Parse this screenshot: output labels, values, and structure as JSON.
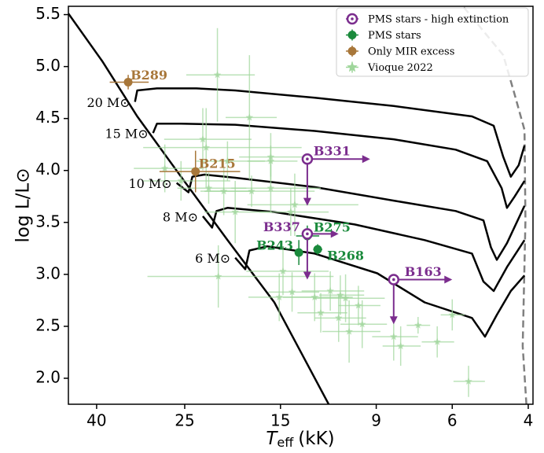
{
  "chart_data": {
    "type": "scatter",
    "x_label": {
      "symbol": "T",
      "subscript": "eff",
      "unit": "(kK)"
    },
    "y_label": "log L/L⊙",
    "xscale": "log",
    "xlim": [
      46.5,
      3.9
    ],
    "xticks": [
      40,
      25,
      15,
      9,
      6,
      4
    ],
    "ylim": [
      1.75,
      5.58
    ],
    "yticks": [
      {
        "value": 2,
        "label": "2.0"
      },
      2.5,
      {
        "value": 3,
        "label": "3.0"
      },
      3.5,
      {
        "value": 4,
        "label": "4.0"
      },
      4.5,
      {
        "value": 5,
        "label": "5.0"
      },
      5.5
    ],
    "legend_loc": "upper right",
    "series": [
      {
        "name": "PMS stars - high extinction",
        "color": "#7b2d8e",
        "marker": "open-circle",
        "labels": [
          "B331",
          "B337",
          "B163"
        ],
        "x": [
          13.0,
          13.0,
          8.2
        ],
        "y": [
          4.11,
          3.39,
          2.95
        ],
        "x_limit": [
          9.3,
          11.0,
          6.0
        ],
        "y_limit": [
          3.66,
          2.95,
          2.52
        ]
      },
      {
        "name": "PMS stars",
        "color": "#1a8a3c",
        "marker": "circle",
        "labels": [
          "B243",
          "B275",
          "B268"
        ],
        "x": [
          13.6,
          13.0,
          12.3
        ],
        "y": [
          3.21,
          3.37,
          3.24
        ],
        "xerr": [
          0.3,
          0.8,
          0.3
        ],
        "yerr": [
          0.12,
          0.1,
          0.05
        ]
      },
      {
        "name": "Only MIR excess",
        "color": "#a8773a",
        "marker": "circle",
        "labels": [
          "B289",
          "B215"
        ],
        "x": [
          33.8,
          23.6
        ],
        "y": [
          4.85,
          3.99
        ],
        "xerr": [
          3.5,
          5.0
        ],
        "yerr": [
          0.07,
          0.2
        ]
      },
      {
        "name": "Vioque 2022",
        "color": "#9fd69b",
        "marker": "star",
        "x": [
          21.0,
          17.7,
          22.7,
          22.3,
          19.9,
          15.8,
          15.8,
          25.5,
          22.0,
          20.3,
          17.5,
          15.8,
          13.9,
          19.1,
          14.2,
          20.9,
          15.1,
          14.1,
          12.5,
          11.5,
          10.9,
          10.6,
          11.0,
          10.4,
          9.7,
          9.9,
          12.1,
          8.2,
          7.9,
          7.2,
          6.5,
          6.0,
          5.5,
          14.8,
          27.8
        ],
        "y": [
          4.92,
          4.51,
          4.3,
          4.22,
          4.09,
          4.13,
          4.09,
          3.9,
          3.83,
          3.8,
          3.8,
          3.83,
          3.67,
          3.6,
          3.6,
          2.98,
          2.78,
          2.83,
          2.78,
          2.84,
          2.8,
          2.77,
          2.58,
          2.45,
          2.52,
          2.7,
          2.63,
          2.4,
          2.31,
          2.51,
          2.35,
          2.61,
          1.97,
          3.03,
          4.02
        ],
        "xerr": [
          3.8,
          2.4,
          5.2,
          8.9,
          3.6,
          2.9,
          2.1,
          5.9,
          4.0,
          2.7,
          5.0,
          3.7,
          4.0,
          3.4,
          2.6,
          9.6,
          2.7,
          1.9,
          2.3,
          1.9,
          1.3,
          2.0,
          1.5,
          1.6,
          1.2,
          1.1,
          1.6,
          1.0,
          0.8,
          0.45,
          0.56,
          0.38,
          0.46,
          3.2,
          5.0
        ],
        "yerr": [
          0.45,
          0.6,
          0.3,
          0.38,
          0.19,
          0.23,
          0.15,
          0.19,
          0.15,
          0.23,
          0.15,
          0.23,
          0.3,
          0.3,
          0.23,
          0.3,
          0.23,
          0.19,
          0.23,
          0.19,
          0.19,
          0.23,
          0.23,
          0.3,
          0.23,
          0.19,
          0.19,
          0.23,
          0.19,
          0.08,
          0.15,
          0.15,
          0.15,
          0.23,
          0.23
        ]
      }
    ],
    "zams": {
      "color": "#000000",
      "x": [
        46.5,
        38.8,
        32.2,
        25.5,
        19.9,
        15.5,
        11.6
      ],
      "y": [
        5.51,
        5.05,
        4.52,
        3.94,
        3.33,
        2.73,
        1.75
      ]
    },
    "tracks": [
      {
        "name": "20 M⊙",
        "color": "#000000",
        "x": [
          32.6,
          32.2,
          29.0,
          23.5,
          19.1,
          12.5,
          8.2,
          5.4,
          4.81,
          4.57,
          4.39,
          4.21,
          4.08
        ],
        "y": [
          4.66,
          4.77,
          4.79,
          4.79,
          4.77,
          4.7,
          4.62,
          4.52,
          4.43,
          4.13,
          3.94,
          4.05,
          4.24
        ]
      },
      {
        "name": "15 M⊙",
        "color": "#000000",
        "x": [
          29.6,
          29.0,
          25.5,
          19.1,
          12.5,
          8.2,
          5.89,
          4.98,
          4.61,
          4.48,
          4.3,
          4.08
        ],
        "y": [
          4.36,
          4.45,
          4.45,
          4.44,
          4.38,
          4.3,
          4.2,
          4.09,
          3.83,
          3.64,
          3.75,
          3.9
        ]
      },
      {
        "name": "10 M⊙",
        "color": "#000000",
        "x": [
          26.1,
          24.5,
          24.0,
          22.5,
          19.1,
          12.5,
          8.2,
          5.89,
          5.08,
          4.88,
          4.73,
          4.48,
          4.08
        ],
        "y": [
          3.88,
          3.79,
          3.94,
          3.96,
          3.93,
          3.84,
          3.71,
          3.61,
          3.52,
          3.26,
          3.14,
          3.3,
          3.66
        ]
      },
      {
        "name": "8 M⊙",
        "color": "#000000",
        "x": [
          22.7,
          21.6,
          21.1,
          19.9,
          15.5,
          10.1,
          6.95,
          5.4,
          5.08,
          4.81,
          4.48,
          4.08
        ],
        "y": [
          3.56,
          3.45,
          3.61,
          3.64,
          3.6,
          3.48,
          3.33,
          3.2,
          2.93,
          2.84,
          3.07,
          3.33
        ]
      },
      {
        "name": "6 M⊙",
        "color": "#000000",
        "x": [
          19.1,
          18.1,
          17.7,
          16.1,
          12.5,
          8.95,
          6.95,
          5.4,
          5.04,
          4.73,
          4.39,
          4.08
        ],
        "y": [
          3.16,
          3.05,
          3.23,
          3.27,
          3.2,
          3.01,
          2.73,
          2.58,
          2.4,
          2.61,
          2.84,
          2.99
        ]
      }
    ],
    "birthline": {
      "color": "#808080",
      "style": "dashed",
      "x": [
        5.64,
        4.57,
        4.3,
        4.08,
        4.06,
        4.12,
        4.04
      ],
      "y": [
        5.57,
        5.11,
        4.73,
        4.39,
        3.52,
        2.31,
        1.75
      ]
    }
  }
}
